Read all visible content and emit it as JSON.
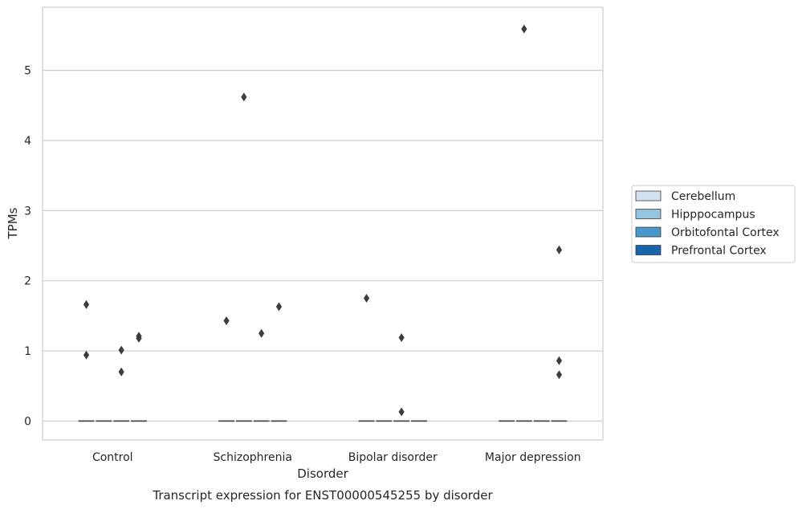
{
  "chart_data": {
    "type": "boxplot",
    "title": "",
    "caption": "Transcript expression for ENST00000545255 by disorder",
    "xlabel": "Disorder",
    "ylabel": "TPMs",
    "ylim": [
      -0.27,
      5.9
    ],
    "yticks": [
      0,
      1,
      2,
      3,
      4,
      5
    ],
    "grid": "horizontal",
    "legend_position": "right",
    "categories": [
      "Control",
      "Schizophrenia",
      "Bipolar disorder",
      "Major depression"
    ],
    "series": [
      {
        "name": "Cerebellum",
        "color": "#d0e1f2"
      },
      {
        "name": "Hipppocampus",
        "color": "#94c4df"
      },
      {
        "name": "Orbitofontal Cortex",
        "color": "#4a98c9"
      },
      {
        "name": "Prefrontal Cortex",
        "color": "#1764ab"
      }
    ],
    "box_median": 0,
    "outliers": [
      {
        "category": "Control",
        "series": "Cerebellum",
        "values": [
          1.66,
          0.94
        ]
      },
      {
        "category": "Control",
        "series": "Orbitofontal Cortex",
        "values": [
          1.01,
          0.7
        ]
      },
      {
        "category": "Control",
        "series": "Prefrontal Cortex",
        "values": [
          1.21,
          1.18
        ]
      },
      {
        "category": "Schizophrenia",
        "series": "Cerebellum",
        "values": [
          1.43
        ]
      },
      {
        "category": "Schizophrenia",
        "series": "Hipppocampus",
        "values": [
          4.62
        ]
      },
      {
        "category": "Schizophrenia",
        "series": "Orbitofontal Cortex",
        "values": [
          1.25
        ]
      },
      {
        "category": "Schizophrenia",
        "series": "Prefrontal Cortex",
        "values": [
          1.63
        ]
      },
      {
        "category": "Bipolar disorder",
        "series": "Cerebellum",
        "values": [
          1.75
        ]
      },
      {
        "category": "Bipolar disorder",
        "series": "Orbitofontal Cortex",
        "values": [
          1.19,
          0.13
        ]
      },
      {
        "category": "Major depression",
        "series": "Hipppocampus",
        "values": [
          5.59
        ]
      },
      {
        "category": "Major depression",
        "series": "Prefrontal Cortex",
        "values": [
          2.44,
          0.86,
          0.66
        ]
      }
    ]
  }
}
